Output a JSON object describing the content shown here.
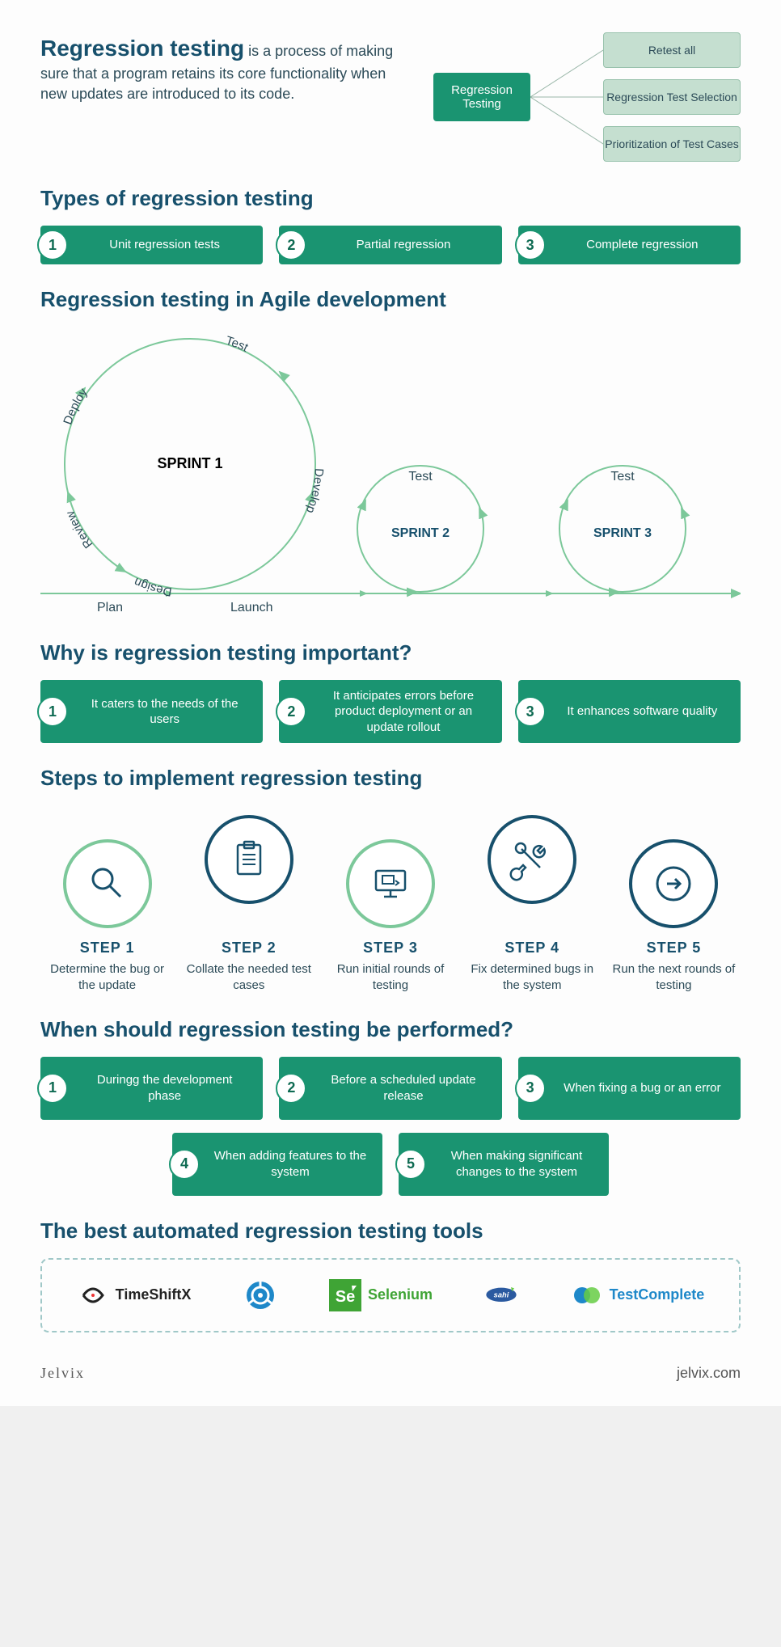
{
  "colors": {
    "heading": "#17506c",
    "body_text": "#2b4a57",
    "pill_bg": "#1a9471",
    "leaf_bg": "#c5dfd0",
    "leaf_border": "#98c2ac",
    "leaf_text": "#2b4a57",
    "circle_green": "#7cc89a",
    "circle_navy": "#17506c",
    "arrow_fill": "#f6e9d2",
    "arrow_stroke": "#c9d9c7",
    "step_text": "#17506c",
    "tool_text": "#333333",
    "selenium": "#3fa435",
    "testcomplete": "#1e88c9",
    "dashed_border": "#a0c8c8",
    "page_bg": "#fdfdfd"
  },
  "intro": {
    "title": "Regression testing",
    "desc": " is a process of making sure that a program retains its core functionality when new updates are introduced to its code."
  },
  "tree": {
    "root": "Regression Testing",
    "leaves": [
      "Retest all",
      "Regression Test Selection",
      "Prioritization of Test Cases"
    ]
  },
  "sections": {
    "types": "Types of regression testing",
    "agile": "Regression testing in Agile development",
    "why": "Why is regression testing important?",
    "steps": "Steps to implement regression testing",
    "when": "When should regression testing be performed?",
    "tools": "The best automated regression testing tools"
  },
  "types": [
    {
      "n": "1",
      "t": "Unit regression tests"
    },
    {
      "n": "2",
      "t": "Partial regression"
    },
    {
      "n": "3",
      "t": "Complete regression"
    }
  ],
  "agile": {
    "sprints": [
      "SPRINT 1",
      "SPRINT 2",
      "SPRINT 3"
    ],
    "big_phases": [
      "Deploy",
      "Test",
      "Develop",
      "Design",
      "Review"
    ],
    "small_phase": "Test",
    "baseline": [
      "Plan",
      "Launch"
    ]
  },
  "why": [
    {
      "n": "1",
      "t": "It caters to the needs of the users"
    },
    {
      "n": "2",
      "t": "It anticipates errors before product deployment or an update rollout"
    },
    {
      "n": "3",
      "t": "It enhances software quality"
    }
  ],
  "steps": [
    {
      "title": "STEP 1",
      "desc": "Determine the bug or the update",
      "ring": "green",
      "icon": "magnify",
      "raised": false
    },
    {
      "title": "STEP 2",
      "desc": "Collate the needed test cases",
      "ring": "navy",
      "icon": "clipboard",
      "raised": true
    },
    {
      "title": "STEP 3",
      "desc": "Run initial rounds of testing",
      "ring": "green",
      "icon": "monitor",
      "raised": false
    },
    {
      "title": "STEP 4",
      "desc": "Fix determined bugs in the system",
      "ring": "navy",
      "icon": "wrench",
      "raised": true
    },
    {
      "title": "STEP 5",
      "desc": "Run the next rounds of testing",
      "ring": "navy",
      "icon": "arrow",
      "raised": false
    }
  ],
  "when_row1": [
    {
      "n": "1",
      "t": "Duringg the development phase"
    },
    {
      "n": "2",
      "t": "Before a scheduled update release"
    },
    {
      "n": "3",
      "t": "When fixing a bug or an error"
    }
  ],
  "when_row2": [
    {
      "n": "4",
      "t": "When adding features to the system"
    },
    {
      "n": "5",
      "t": "When making significant changes to the system"
    }
  ],
  "tools": [
    {
      "name": "TimeShiftX",
      "icon": "timeshift",
      "color": "#222"
    },
    {
      "name": "",
      "icon": "wheel",
      "color": "#1e88c9"
    },
    {
      "name": "Selenium",
      "icon": "se",
      "color": "#3fa435"
    },
    {
      "name": "",
      "icon": "sahi",
      "color": "#2b5aa0"
    },
    {
      "name": "TestComplete",
      "icon": "tc",
      "color": "#1e88c9"
    }
  ],
  "footer": {
    "left": "Jelvix",
    "right": "jelvix.com"
  }
}
